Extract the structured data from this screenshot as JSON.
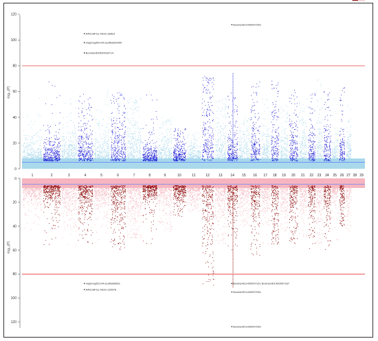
{
  "chart_data": [
    {
      "type": "scatter",
      "subtype": "manhattan",
      "panel": "top",
      "ylabel": "-log₁₀(P)",
      "ylim": [
        0,
        120
      ],
      "yticks": [
        "0",
        "20",
        "40",
        "60",
        "80",
        "100",
        "120"
      ],
      "categories": [
        "1",
        "2",
        "3",
        "4",
        "5",
        "6",
        "7",
        "8",
        "9",
        "10",
        "11",
        "12",
        "13",
        "14",
        "15",
        "16",
        "17",
        "18",
        "19",
        "20",
        "21",
        "22",
        "23",
        "24",
        "25",
        "26",
        "27",
        "28",
        "29"
      ],
      "colors": {
        "odd": "#a8d8ec",
        "even": "#1f1fd6",
        "line": "#e41a1c",
        "sugg": "#5a7cff",
        "band": "#9ad2e8",
        "mark": "#444444"
      },
      "threshold": 80,
      "suggestive": 5,
      "peaks": [
        12,
        60,
        15,
        72,
        20,
        55,
        25,
        58,
        18,
        62,
        30,
        60,
        35,
        55,
        12,
        58,
        18,
        40,
        15,
        32,
        12,
        28,
        50,
        72,
        30,
        55,
        25,
        60,
        20,
        40,
        35,
        68,
        22,
        55,
        40,
        70,
        22,
        50,
        30,
        62,
        25,
        55,
        30,
        60,
        32,
        70,
        28,
        62,
        12,
        55,
        28,
        66,
        22,
        52
      ],
      "annotations": [
        {
          "x": 4,
          "y": 105,
          "label": "ARS-BFGL-NGS-18819"
        },
        {
          "x": 4,
          "y": 98,
          "label": "Hapmap50144-scaffold20990"
        },
        {
          "x": 4,
          "y": 90,
          "label": "BovineHD0400018714"
        },
        {
          "x": 14,
          "y": 112,
          "label": "BovineHD1400007259"
        }
      ]
    },
    {
      "type": "scatter",
      "subtype": "manhattan",
      "panel": "bottom",
      "ylabel": "-log₁₀(P)",
      "ylim": [
        0,
        120
      ],
      "yticks": [
        "0",
        "20",
        "40",
        "60",
        "80",
        "100",
        "120"
      ],
      "categories": [
        "1",
        "2",
        "3",
        "4",
        "5",
        "6",
        "7",
        "8",
        "9",
        "10",
        "11",
        "12",
        "13",
        "14",
        "15",
        "16",
        "17",
        "18",
        "19",
        "20",
        "21",
        "22",
        "23",
        "24",
        "25",
        "26",
        "27",
        "28",
        "29"
      ],
      "colors": {
        "odd": "#f4b8c1",
        "even": "#8b0000",
        "line": "#e41a1c",
        "sugg": "#5a7cff",
        "band": "#f5a8b4",
        "mark": "#444444"
      },
      "threshold": 80,
      "suggestive": 5,
      "peaks": [
        12,
        45,
        15,
        60,
        20,
        60,
        25,
        55,
        18,
        55,
        30,
        60,
        35,
        50,
        12,
        55,
        18,
        45,
        15,
        32,
        12,
        28,
        50,
        90,
        30,
        55,
        25,
        60,
        20,
        40,
        35,
        65,
        22,
        55,
        40,
        55,
        22,
        45,
        30,
        55,
        25,
        50,
        30,
        60,
        32,
        55,
        28,
        60,
        12,
        55,
        28,
        40,
        22,
        45
      ],
      "annotations": [
        {
          "x": 4,
          "y": 88,
          "label": "Hapmap52144-scaffold0601"
        },
        {
          "x": 4,
          "y": 93,
          "label": "ARS-BFGL-NGS-115576"
        },
        {
          "x": 14,
          "y": 88,
          "label": "BovineHD1400007101 BovineHD1400007187"
        },
        {
          "x": 14,
          "y": 95,
          "label": "BovineHD1400007034"
        },
        {
          "x": 14,
          "y": 124,
          "label": "BovineHD1400007259"
        }
      ]
    }
  ]
}
